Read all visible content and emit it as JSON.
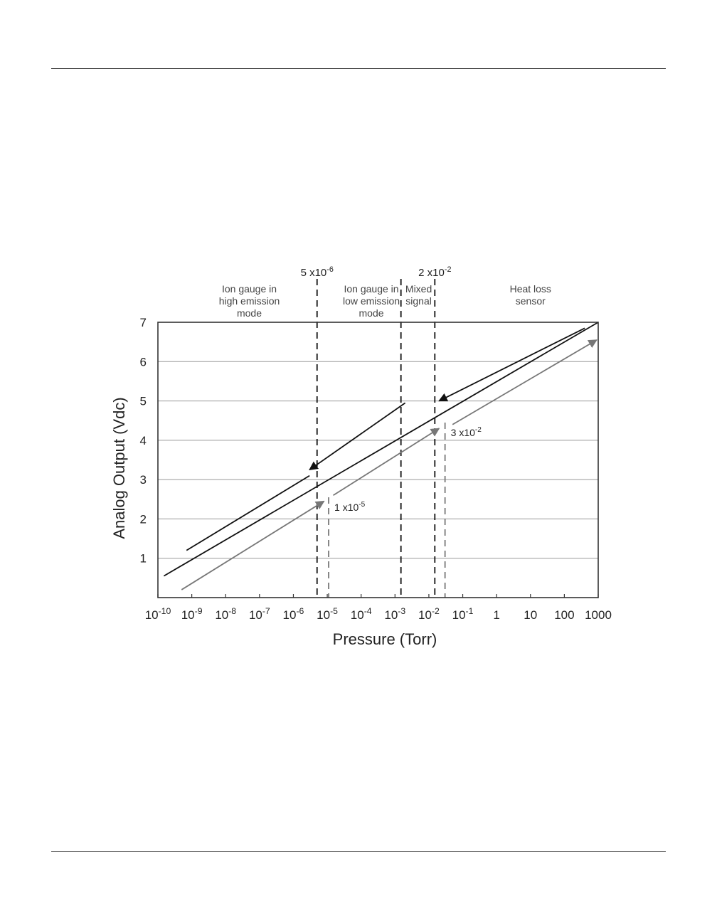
{
  "chart_data": {
    "type": "line",
    "title": "",
    "xlabel": "Pressure (Torr)",
    "ylabel": "Analog Output (Vdc)",
    "x_scale": "log",
    "xlim": [
      1e-10,
      1000
    ],
    "ylim": [
      0,
      7
    ],
    "grid": {
      "horizontal": true,
      "vertical": false
    },
    "x_ticks": [
      {
        "value": 1e-10,
        "base": "10",
        "exp": "-10"
      },
      {
        "value": 1e-09,
        "base": "10",
        "exp": "-9"
      },
      {
        "value": 1e-08,
        "base": "10",
        "exp": "-8"
      },
      {
        "value": 1e-07,
        "base": "10",
        "exp": "-7"
      },
      {
        "value": 1e-06,
        "base": "10",
        "exp": "-6"
      },
      {
        "value": 1e-05,
        "base": "10",
        "exp": "-5"
      },
      {
        "value": 0.0001,
        "base": "10",
        "exp": "-4"
      },
      {
        "value": 0.001,
        "base": "10",
        "exp": "-3"
      },
      {
        "value": 0.01,
        "base": "10",
        "exp": "-2"
      },
      {
        "value": 0.1,
        "base": "10",
        "exp": "-1"
      },
      {
        "value": 1,
        "base": "1",
        "exp": ""
      },
      {
        "value": 10,
        "base": "10",
        "exp": ""
      },
      {
        "value": 100,
        "base": "100",
        "exp": ""
      },
      {
        "value": 1000,
        "base": "1000",
        "exp": ""
      }
    ],
    "y_ticks": [
      "1",
      "2",
      "3",
      "4",
      "5",
      "6",
      "7"
    ],
    "series": [
      {
        "color": "#111111",
        "arrow": false,
        "points": [
          [
            1.5e-10,
            0.55
          ],
          [
            1000,
            7.0
          ]
        ]
      },
      {
        "color": "#111111",
        "arrow": false,
        "points": [
          [
            3e-06,
            3.1
          ],
          [
            7e-10,
            1.2
          ]
        ]
      },
      {
        "color": "#111111",
        "arrow": "end",
        "points": [
          [
            0.002,
            4.95
          ],
          [
            3e-06,
            3.25
          ]
        ]
      },
      {
        "color": "#111111",
        "arrow": "end",
        "points": [
          [
            400,
            6.85
          ],
          [
            0.02,
            5.0
          ]
        ]
      },
      {
        "color": "#777777",
        "arrow": "end",
        "points": [
          [
            5e-10,
            0.2
          ],
          [
            8e-06,
            2.45
          ]
        ]
      },
      {
        "color": "#777777",
        "arrow": "end",
        "points": [
          [
            1.5e-05,
            2.6
          ],
          [
            0.02,
            4.3
          ]
        ]
      },
      {
        "color": "#777777",
        "arrow": "end",
        "points": [
          [
            0.05,
            4.4
          ],
          [
            900,
            6.55
          ]
        ]
      }
    ],
    "thresholds": [
      {
        "x": 5e-06,
        "color": "#111111",
        "label": {
          "base": "5 x10",
          "exp": "-6"
        },
        "label_pos": "top"
      },
      {
        "x": 0.0015,
        "color": "#111111",
        "label": null,
        "label_pos": "top"
      },
      {
        "x": 0.015,
        "color": "#111111",
        "label": {
          "base": "2 x10",
          "exp": "-2"
        },
        "label_pos": "top"
      },
      {
        "x": 1.1e-05,
        "color": "#777777",
        "label": {
          "base": "1 x10",
          "exp": "-5"
        },
        "label_pos": "low",
        "label_y": 2.3,
        "y_top": 2.55
      },
      {
        "x": 0.03,
        "color": "#777777",
        "label": {
          "base": "3 x10",
          "exp": "-2"
        },
        "label_pos": "low",
        "label_y": 4.2,
        "y_top": 4.45
      }
    ],
    "regions": [
      {
        "x_center": 5e-08,
        "lines": [
          "Ion gauge in",
          "high emission",
          "mode"
        ]
      },
      {
        "x_center": 0.0002,
        "lines": [
          "Ion gauge in",
          "low emission",
          "mode"
        ]
      },
      {
        "x_center": 0.005,
        "lines": [
          "Mixed",
          "signal"
        ]
      },
      {
        "x_center": 10,
        "lines": [
          "Heat loss",
          "sensor"
        ]
      }
    ]
  }
}
